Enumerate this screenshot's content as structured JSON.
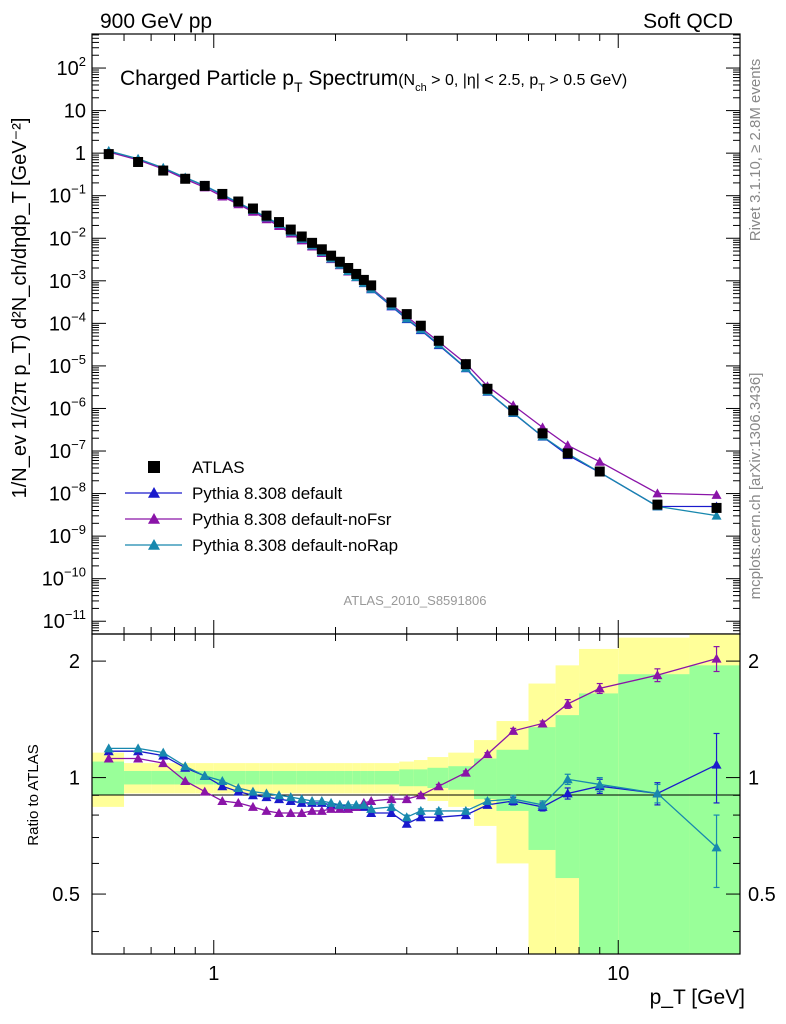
{
  "chart_data": {
    "type": "scatter",
    "header_left": "900 GeV pp",
    "header_right": "Soft QCD",
    "title_main": "Charged Particle p",
    "title_main_sub": "T",
    "title_main_tail": " Spectrum",
    "title_cuts": "(N",
    "title_cuts_sub1": "ch",
    "title_cuts_mid": " > 0, |η| < 2.5, p",
    "title_cuts_sub2": "T",
    "title_cuts_tail": " > 0.5 GeV)",
    "ylabel": "1/N_ev 1/(2π p_T) d²N_ch/dηdp_T [GeV⁻²]",
    "xlabel": "p_T [GeV]",
    "ratio_ylabel": "Ratio to ATLAS",
    "analysis_label": "ATLAS_2010_S8591806",
    "side_label_top": "Rivet 3.1.10, ≥ 2.8M events",
    "side_label_bottom": "mcplots.cern.ch [arXiv:1306.3436]",
    "x_scale": "log",
    "xlim": [
      0.5,
      20
    ],
    "ylim_log10": [
      -11.3,
      2.8
    ],
    "ratio_ylim": [
      0.35,
      2.35
    ],
    "legend": {
      "placement": "lower-left",
      "entries": [
        {
          "label": "ATLAS",
          "marker": "square",
          "color": "#000000"
        },
        {
          "label": "Pythia 8.308 default",
          "marker": "triangle",
          "color": "#1a1acc"
        },
        {
          "label": "Pythia 8.308 default-noFsr",
          "marker": "triangle",
          "color": "#8a14a8"
        },
        {
          "label": "Pythia 8.308 default-noRap",
          "marker": "triangle",
          "color": "#1888ae"
        }
      ]
    },
    "x_ticks": [
      {
        "value": 1,
        "label": "1"
      },
      {
        "value": 10,
        "label": "10"
      }
    ],
    "y_ticks": [
      {
        "exp": 2,
        "label": "10",
        "sup": "2"
      },
      {
        "exp": 1,
        "label": "10",
        "sup": ""
      },
      {
        "exp": 0,
        "label": "1",
        "sup": ""
      },
      {
        "exp": -1,
        "label": "10",
        "sup": "−1"
      },
      {
        "exp": -2,
        "label": "10",
        "sup": "−2"
      },
      {
        "exp": -3,
        "label": "10",
        "sup": "−3"
      },
      {
        "exp": -4,
        "label": "10",
        "sup": "−4"
      },
      {
        "exp": -5,
        "label": "10",
        "sup": "−5"
      },
      {
        "exp": -6,
        "label": "10",
        "sup": "−6"
      },
      {
        "exp": -7,
        "label": "10",
        "sup": "−7"
      },
      {
        "exp": -8,
        "label": "10",
        "sup": "−8"
      },
      {
        "exp": -9,
        "label": "10",
        "sup": "−9"
      },
      {
        "exp": -10,
        "label": "10",
        "sup": "−10"
      },
      {
        "exp": -11,
        "label": "10",
        "sup": "−11"
      }
    ],
    "ratio_ticks": [
      {
        "value": 0.5,
        "label": "0.5"
      },
      {
        "value": 1,
        "label": "1"
      },
      {
        "value": 2,
        "label": "2"
      }
    ],
    "x": [
      0.55,
      0.65,
      0.75,
      0.85,
      0.95,
      1.05,
      1.15,
      1.25,
      1.35,
      1.45,
      1.55,
      1.65,
      1.75,
      1.85,
      1.95,
      2.05,
      2.15,
      2.25,
      2.35,
      2.45,
      2.75,
      3.0,
      3.25,
      3.6,
      4.2,
      4.75,
      5.5,
      6.5,
      7.5,
      9.0,
      12.5,
      17.5
    ],
    "data_values": [
      0.95,
      0.62,
      0.39,
      0.25,
      0.17,
      0.11,
      0.073,
      0.05,
      0.034,
      0.024,
      0.016,
      0.011,
      0.0078,
      0.0055,
      0.0039,
      0.0028,
      0.002,
      0.00145,
      0.00105,
      0.00078,
      0.00031,
      0.000165,
      8.8e-05,
      3.9e-05,
      1.1e-05,
      2.9e-06,
      9e-07,
      2.6e-07,
      8.8e-08,
      3.3e-08,
      5.5e-09,
      4.6e-09
    ],
    "ratios": [
      {
        "name": "Pythia 8.308 default",
        "color": "#1a1acc",
        "values": [
          1.17,
          1.17,
          1.14,
          1.06,
          1.01,
          0.95,
          0.92,
          0.9,
          0.89,
          0.88,
          0.87,
          0.86,
          0.86,
          0.86,
          0.85,
          0.85,
          0.84,
          0.84,
          0.84,
          0.81,
          0.81,
          0.76,
          0.79,
          0.79,
          0.8,
          0.85,
          0.87,
          0.84,
          0.91,
          0.95,
          0.91,
          1.08
        ],
        "errors": [
          0.005,
          0.005,
          0.005,
          0.005,
          0.005,
          0.005,
          0.005,
          0.005,
          0.005,
          0.005,
          0.005,
          0.005,
          0.005,
          0.005,
          0.005,
          0.005,
          0.005,
          0.005,
          0.005,
          0.005,
          0.01,
          0.01,
          0.01,
          0.01,
          0.01,
          0.01,
          0.02,
          0.02,
          0.03,
          0.04,
          0.06,
          0.22
        ]
      },
      {
        "name": "Pythia 8.308 default-noFsr",
        "color": "#8a14a8",
        "values": [
          1.12,
          1.12,
          1.09,
          0.98,
          0.92,
          0.87,
          0.86,
          0.84,
          0.82,
          0.81,
          0.81,
          0.81,
          0.82,
          0.82,
          0.83,
          0.83,
          0.83,
          0.84,
          0.86,
          0.87,
          0.88,
          0.88,
          0.9,
          0.95,
          1.03,
          1.15,
          1.32,
          1.38,
          1.55,
          1.7,
          1.84,
          2.03
        ],
        "errors": [
          0.005,
          0.005,
          0.005,
          0.005,
          0.005,
          0.005,
          0.005,
          0.005,
          0.005,
          0.005,
          0.005,
          0.005,
          0.005,
          0.005,
          0.005,
          0.005,
          0.005,
          0.005,
          0.005,
          0.005,
          0.01,
          0.01,
          0.01,
          0.01,
          0.01,
          0.01,
          0.02,
          0.02,
          0.04,
          0.05,
          0.07,
          0.15
        ]
      },
      {
        "name": "Pythia 8.308 default-noRap",
        "color": "#1888ae",
        "values": [
          1.19,
          1.19,
          1.16,
          1.07,
          1.01,
          0.98,
          0.94,
          0.92,
          0.91,
          0.9,
          0.89,
          0.88,
          0.87,
          0.87,
          0.86,
          0.85,
          0.85,
          0.85,
          0.85,
          0.83,
          0.84,
          0.79,
          0.82,
          0.82,
          0.82,
          0.87,
          0.88,
          0.85,
          0.99,
          0.96,
          0.91,
          0.66
        ],
        "errors": [
          0.005,
          0.005,
          0.005,
          0.005,
          0.005,
          0.005,
          0.005,
          0.005,
          0.005,
          0.005,
          0.005,
          0.005,
          0.005,
          0.005,
          0.005,
          0.005,
          0.005,
          0.005,
          0.005,
          0.005,
          0.01,
          0.01,
          0.01,
          0.01,
          0.01,
          0.01,
          0.02,
          0.02,
          0.03,
          0.04,
          0.05,
          0.14
        ]
      }
    ],
    "bands": {
      "bin_edges": [
        0.5,
        0.6,
        0.7,
        0.8,
        0.9,
        1.0,
        1.1,
        1.2,
        1.3,
        1.4,
        1.5,
        1.6,
        1.7,
        1.8,
        1.9,
        2.0,
        2.1,
        2.2,
        2.3,
        2.4,
        2.5,
        2.875,
        3.125,
        3.375,
        3.8,
        4.4,
        5.0,
        6.0,
        7.0,
        8.0,
        10.0,
        15.0,
        20.0
      ],
      "green_halfwidth": [
        0.1,
        0.04,
        0.04,
        0.04,
        0.04,
        0.04,
        0.04,
        0.04,
        0.04,
        0.04,
        0.04,
        0.04,
        0.04,
        0.04,
        0.04,
        0.04,
        0.04,
        0.04,
        0.04,
        0.04,
        0.04,
        0.05,
        0.05,
        0.06,
        0.07,
        0.12,
        0.18,
        0.35,
        0.45,
        0.65,
        0.85,
        0.95
      ],
      "yellow_halfwidth": [
        0.16,
        0.09,
        0.09,
        0.09,
        0.09,
        0.09,
        0.09,
        0.09,
        0.09,
        0.09,
        0.09,
        0.09,
        0.09,
        0.09,
        0.09,
        0.09,
        0.09,
        0.09,
        0.09,
        0.09,
        0.09,
        0.1,
        0.11,
        0.13,
        0.16,
        0.25,
        0.4,
        0.75,
        0.95,
        1.15,
        1.3,
        1.4
      ]
    },
    "band_colors": {
      "green": "#99ff99",
      "yellow": "#ffff99"
    },
    "grid": false
  }
}
